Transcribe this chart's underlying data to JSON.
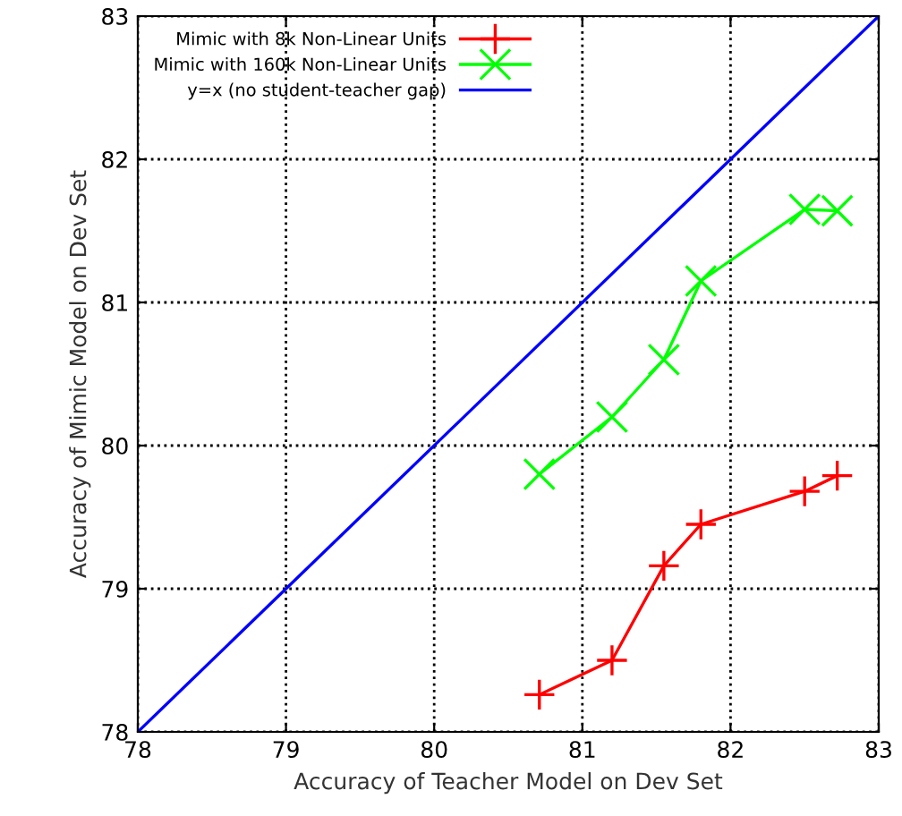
{
  "chart_data": {
    "type": "line",
    "xlabel": "Accuracy of Teacher Model on Dev Set",
    "ylabel": "Accuracy of Mimic Model on Dev Set",
    "xlim": [
      78,
      83
    ],
    "ylim": [
      78,
      83
    ],
    "xticks": [
      78,
      79,
      80,
      81,
      82,
      83
    ],
    "yticks": [
      78,
      79,
      80,
      81,
      82,
      83
    ],
    "grid": true,
    "legend": "top left",
    "series": [
      {
        "name": "Mimic with 8k Non-Linear Units",
        "color": "#ff0000",
        "marker": "plus",
        "x": [
          80.71,
          81.2,
          81.55,
          81.8,
          82.5,
          82.72
        ],
        "values": [
          78.26,
          78.5,
          79.16,
          79.45,
          79.68,
          79.79
        ]
      },
      {
        "name": "Mimic with 160k Non-Linear Units",
        "color": "#00ff00",
        "marker": "cross",
        "x": [
          80.71,
          81.2,
          81.55,
          81.8,
          82.5,
          82.72
        ],
        "values": [
          79.8,
          80.2,
          80.6,
          81.15,
          81.65,
          81.64
        ]
      },
      {
        "name": "y=x (no student-teacher gap)",
        "color": "#0000ff",
        "marker": "none",
        "x": [
          78,
          83
        ],
        "values": [
          78,
          83
        ]
      }
    ]
  }
}
